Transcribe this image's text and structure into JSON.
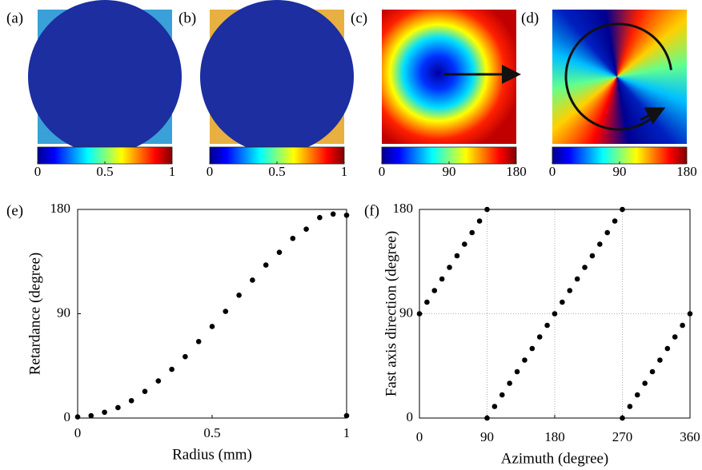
{
  "chart_data": [
    {
      "type": "image",
      "label": "(a)",
      "colorbar": {
        "lim": [
          0,
          1
        ],
        "ticks": [
          0,
          0.5,
          1
        ]
      }
    },
    {
      "type": "image",
      "label": "(b)",
      "colorbar": {
        "lim": [
          0,
          1
        ],
        "ticks": [
          0,
          0.5,
          1
        ]
      }
    },
    {
      "type": "image",
      "label": "(c)",
      "colorbar": {
        "lim": [
          0,
          180
        ],
        "ticks": [
          0,
          90,
          180
        ]
      }
    },
    {
      "type": "image",
      "label": "(d)",
      "colorbar": {
        "lim": [
          0,
          180
        ],
        "ticks": [
          0,
          90,
          180
        ]
      }
    },
    {
      "type": "scatter",
      "label": "(e)",
      "xlabel": "Radius (mm)",
      "ylabel": "Retardance (degree)",
      "color": "#000000",
      "grid": false,
      "x": [
        0,
        0.05,
        0.1,
        0.15,
        0.2,
        0.25,
        0.3,
        0.35,
        0.4,
        0.45,
        0.5,
        0.55,
        0.6,
        0.65,
        0.7,
        0.75,
        0.8,
        0.85,
        0.9,
        0.95,
        1,
        1
      ],
      "y": [
        1,
        2,
        5,
        9,
        15,
        23,
        32,
        42,
        53,
        66,
        79,
        92,
        106,
        119,
        132,
        143,
        155,
        163,
        173,
        176,
        175,
        2
      ],
      "xlim": [
        0,
        1
      ],
      "ylim": [
        0,
        180
      ],
      "xticks": [
        0,
        0.5,
        1
      ],
      "yticks": [
        0,
        90,
        180
      ]
    },
    {
      "type": "scatter",
      "label": "(f)",
      "xlabel": "Azimuth (degree)",
      "ylabel": "Fast axis direction (degree)",
      "color": "#000000",
      "grid": true,
      "x": [
        0,
        10,
        20,
        30,
        40,
        50,
        60,
        70,
        80,
        90,
        90,
        100,
        110,
        120,
        130,
        140,
        150,
        160,
        170,
        180,
        190,
        200,
        210,
        220,
        230,
        240,
        250,
        260,
        270,
        270,
        280,
        290,
        300,
        310,
        320,
        330,
        340,
        350,
        360
      ],
      "y": [
        90,
        100,
        110,
        120,
        130,
        140,
        150,
        160,
        170,
        180,
        0,
        10,
        20,
        30,
        40,
        50,
        60,
        70,
        80,
        90,
        100,
        110,
        120,
        130,
        140,
        150,
        160,
        170,
        180,
        0,
        10,
        20,
        30,
        40,
        50,
        60,
        70,
        80,
        90
      ],
      "xlim": [
        0,
        360
      ],
      "ylim": [
        0,
        180
      ],
      "xticks": [
        0,
        90,
        180,
        270,
        360
      ],
      "yticks": [
        0,
        90,
        180
      ]
    }
  ]
}
